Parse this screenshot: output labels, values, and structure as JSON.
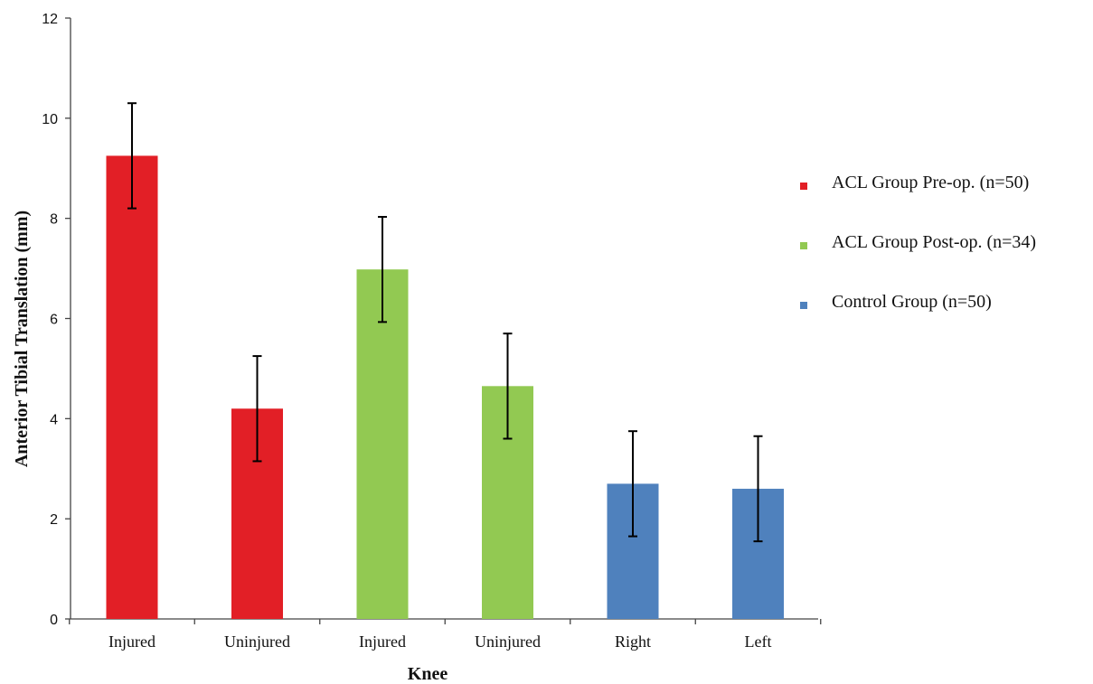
{
  "chart_data": {
    "type": "bar",
    "title": "",
    "xlabel": "Knee",
    "ylabel": "Anterior Tibial Translation (mm)",
    "ylim": [
      0,
      12
    ],
    "yticks": [
      0,
      2,
      4,
      6,
      8,
      10,
      12
    ],
    "grid": false,
    "legend_position": "right",
    "categories": [
      "Injured",
      "Uninjured",
      "Injured",
      "Uninjured",
      "Right",
      "Left"
    ],
    "values": [
      9.25,
      4.2,
      6.98,
      4.65,
      2.7,
      2.6
    ],
    "errors": [
      1.05,
      1.05,
      1.05,
      1.05,
      1.05,
      1.05
    ],
    "bar_series": [
      0,
      0,
      1,
      1,
      2,
      2
    ],
    "series": [
      {
        "name": "ACL Group Pre-op. (n=50)",
        "color": "#e21f26"
      },
      {
        "name": "ACL Group Post-op. (n=34)",
        "color": "#92c952"
      },
      {
        "name": "Control Group (n=50)",
        "color": "#4f81bd"
      }
    ]
  }
}
